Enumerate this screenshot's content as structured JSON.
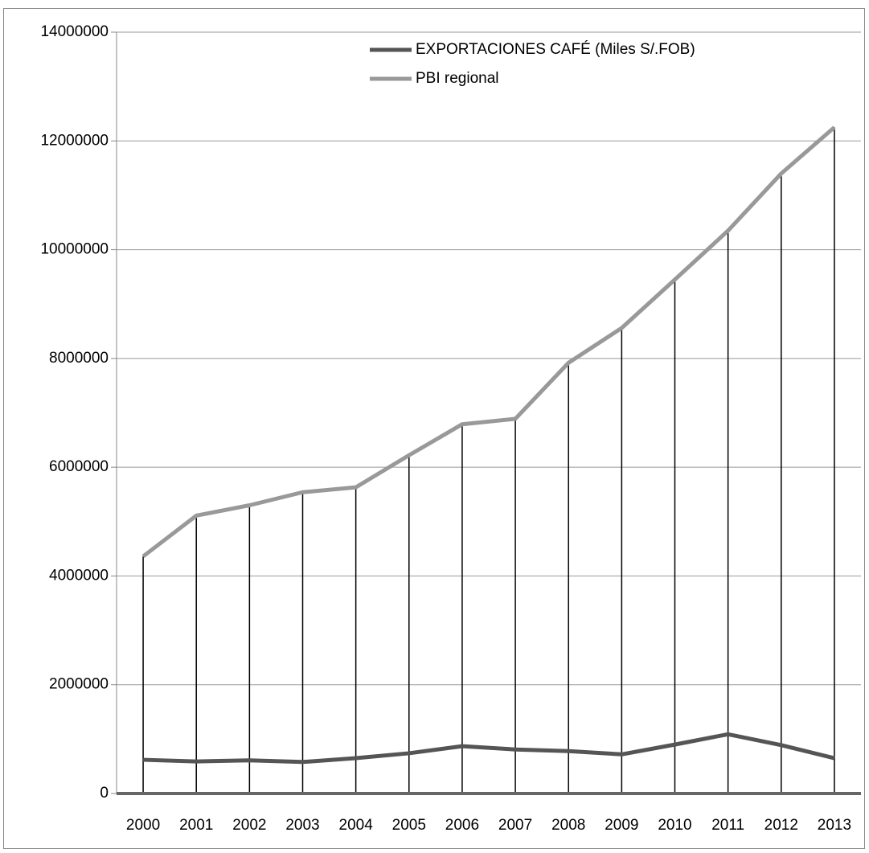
{
  "chart_data": {
    "type": "line",
    "categories": [
      "2000",
      "2001",
      "2002",
      "2003",
      "2004",
      "2005",
      "2006",
      "2007",
      "2008",
      "2009",
      "2010",
      "2011",
      "2012",
      "2013"
    ],
    "series": [
      {
        "name": "EXPORTACIONES CAFÉ (Miles S/.FOB)",
        "color": "#555555",
        "values": [
          620000,
          590000,
          610000,
          580000,
          650000,
          740000,
          870000,
          810000,
          780000,
          720000,
          900000,
          1090000,
          890000,
          650000
        ]
      },
      {
        "name": "PBI regional",
        "color": "#999999",
        "values": [
          4360000,
          5110000,
          5300000,
          5540000,
          5630000,
          6220000,
          6790000,
          6890000,
          7920000,
          8560000,
          9450000,
          10350000,
          11400000,
          12250000
        ]
      }
    ],
    "ylim": [
      0,
      14000000
    ],
    "yticks": [
      0,
      2000000,
      4000000,
      6000000,
      8000000,
      10000000,
      12000000,
      14000000
    ],
    "grid": true,
    "drop_lines": true,
    "legend": "top"
  }
}
